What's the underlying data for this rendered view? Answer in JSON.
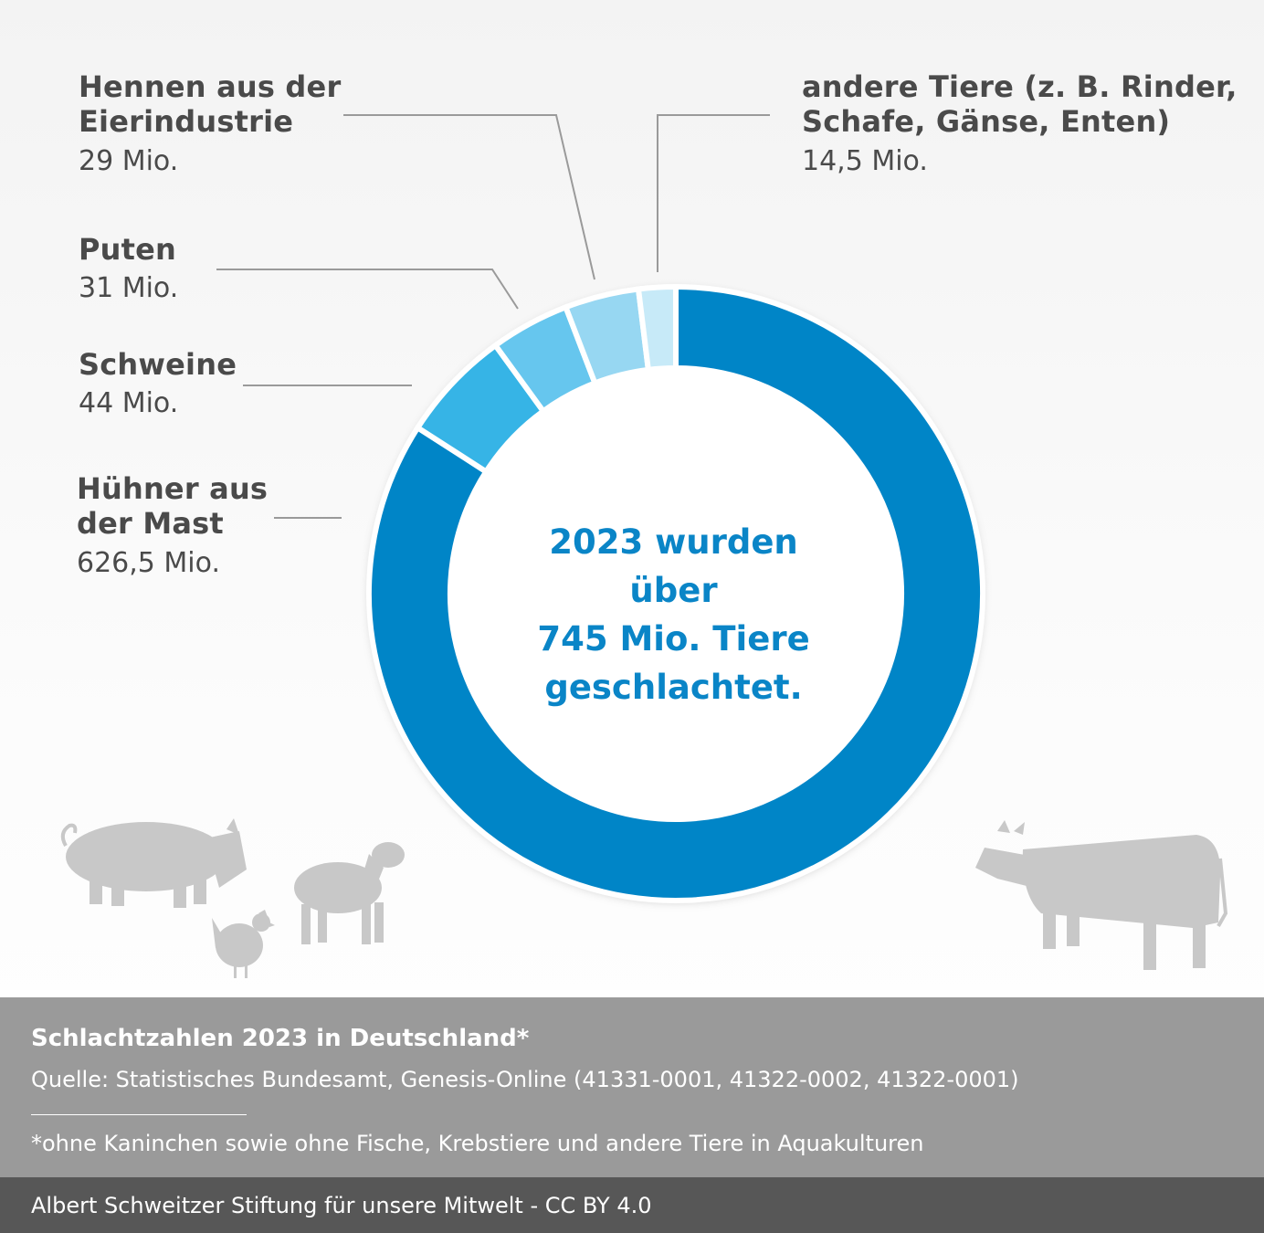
{
  "chart_data": {
    "type": "pie",
    "variant": "donut",
    "title": "Schlachtzahlen 2023 in Deutschland*",
    "center_text": "2023 wurden über 745 Mio. Tiere geschlachtet.",
    "unit": "Mio.",
    "slices": [
      {
        "name": "Hühner aus der Mast",
        "value": 626.5,
        "label_value": "626,5 Mio.",
        "color": "#0085c7"
      },
      {
        "name": "Schweine",
        "value": 44,
        "label_value": "44 Mio.",
        "color": "#36b4e6"
      },
      {
        "name": "Puten",
        "value": 31,
        "label_value": "31 Mio.",
        "color": "#66c6ee"
      },
      {
        "name": "Hennen aus der Eierindustrie",
        "value": 29,
        "label_value": "29 Mio.",
        "color": "#97d7f2"
      },
      {
        "name": "andere Tiere (z. B. Rinder, Schafe, Gänse, Enten)",
        "value": 14.5,
        "label_value": "14,5 Mio.",
        "color": "#c7eaf8"
      }
    ]
  },
  "labels": {
    "huehner_l1": "Hühner aus",
    "huehner_l2": "der Mast",
    "huehner_val": "626,5 Mio.",
    "schweine": "Schweine",
    "schweine_val": "44 Mio.",
    "puten": "Puten",
    "puten_val": "31 Mio.",
    "hennen_l1": "Hennen aus der",
    "hennen_l2": "Eierindustrie",
    "hennen_val": "29 Mio.",
    "andere_l1": "andere Tiere (z. B. Rinder,",
    "andere_l2": "Schafe, Gänse, Enten)",
    "andere_val": "14,5 Mio."
  },
  "center": {
    "line1": "2023 wurden über",
    "line2": "745 Mio. Tiere",
    "line3": "geschlachtet."
  },
  "footer": {
    "title": "Schlachtzahlen 2023 in Deutschland*",
    "source": "Quelle: Statistisches Bundesamt, Genesis-Online (41331-0001, 41322-0002, 41322-0001)",
    "note": "*ohne Kaninchen sowie ohne Fische, Krebstiere und andere Tiere in Aquakulturen",
    "credit": "Albert Schweitzer Stiftung für unsere Mitwelt - CC BY 4.0"
  },
  "illustrations": [
    "pig-icon",
    "chicken-icon",
    "sheep-icon",
    "cow-icon"
  ],
  "colors": {
    "accent": "#0085c7",
    "footer_gray": "#9a9a9a",
    "footer_dark": "#575757",
    "animal_silhouette": "#c8c8c8",
    "leader_line": "#9a9a9a"
  }
}
